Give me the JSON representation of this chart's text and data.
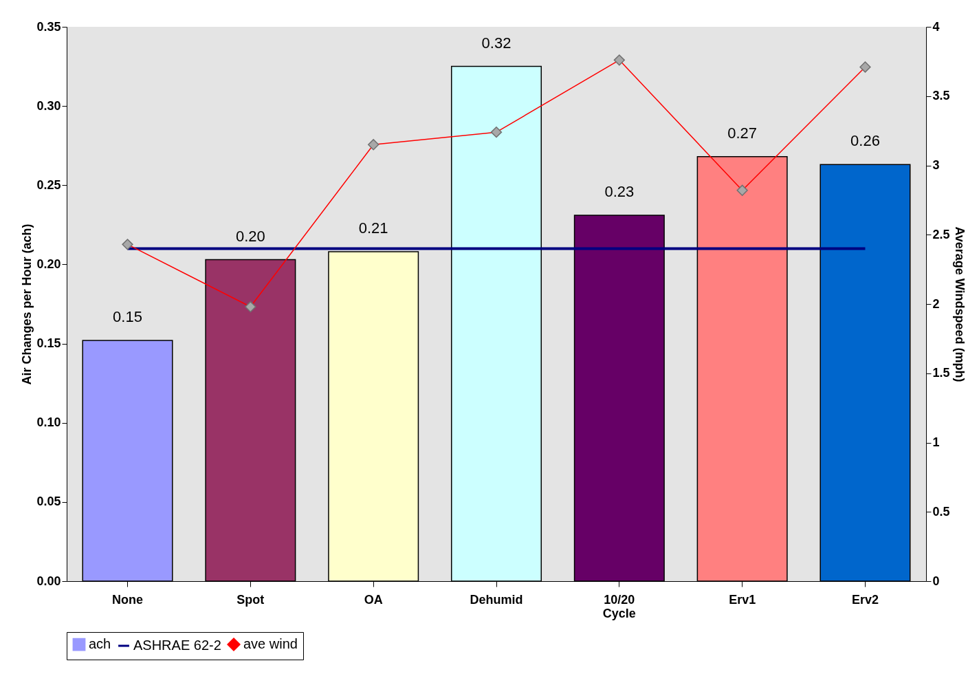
{
  "chart_data": {
    "type": "bar",
    "categories": [
      "None",
      "Spot",
      "OA",
      "Dehumid",
      "10/20 Cycle",
      "Erv1",
      "Erv2"
    ],
    "ylabel": "Air Changes per Hour (ach)",
    "y2label": "Average Windspeed (mph)",
    "ylim": [
      0,
      0.35
    ],
    "yticks": [
      {
        "value": 0,
        "label": "0.00"
      },
      {
        "value": 0.05,
        "label": "0.05"
      },
      {
        "value": 0.1,
        "label": "0.10"
      },
      {
        "value": 0.15,
        "label": "0.15"
      },
      {
        "value": 0.2,
        "label": "0.20"
      },
      {
        "value": 0.25,
        "label": "0.25"
      },
      {
        "value": 0.3,
        "label": "0.30"
      },
      {
        "value": 0.35,
        "label": "0.35"
      }
    ],
    "y2lim": [
      0,
      4
    ],
    "y2ticks": [
      0,
      0.5,
      1,
      1.5,
      2,
      2.5,
      3,
      3.5,
      4
    ],
    "legend": "bottom",
    "grid": false,
    "series": [
      {
        "name": "ach",
        "colors": [
          "#9999ff",
          "#993366",
          "#ffffcc",
          "#ccffff",
          "#660066",
          "#ff8080",
          "#0066cc"
        ],
        "values": [
          0.152,
          0.203,
          0.208,
          0.325,
          0.231,
          0.268,
          0.263
        ],
        "value_labels": [
          "0.15",
          "0.20",
          "0.21",
          "0.32",
          "0.23",
          "0.27",
          "0.26"
        ]
      },
      {
        "name": "ASHRAE 62-2",
        "type": "line",
        "color": "#000080",
        "marker": "none",
        "values": [
          0.21,
          0.21,
          0.21,
          0.21,
          0.21,
          0.21,
          0.21
        ]
      },
      {
        "name": "ave wind",
        "type": "line",
        "color": "#ff0000",
        "marker": "diamond",
        "axis": "y2",
        "values": [
          2.43,
          1.98,
          3.15,
          3.24,
          3.76,
          2.82,
          3.71
        ]
      }
    ]
  }
}
